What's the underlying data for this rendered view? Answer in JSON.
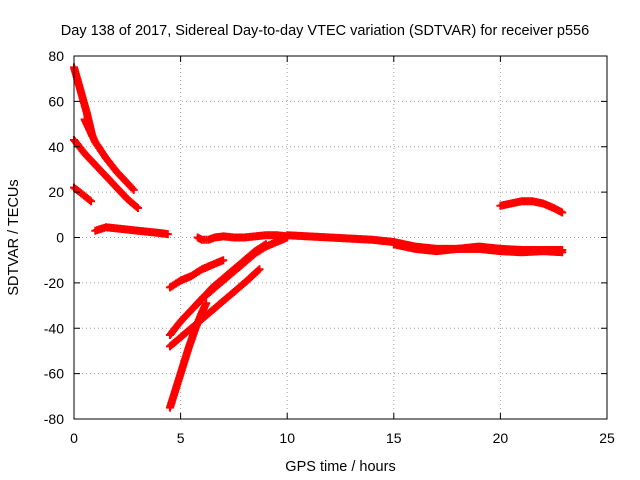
{
  "chart_data": {
    "type": "scatter",
    "title": "Day 138 of 2017, Sidereal Day-to-day VTEC variation (SDTVAR) for receiver p556",
    "xlabel": "GPS time / hours",
    "ylabel": "SDTVAR / TECUs",
    "xlim": [
      0,
      25
    ],
    "ylim": [
      -80,
      80
    ],
    "xticks": [
      "0",
      "5",
      "10",
      "15",
      "20",
      "25"
    ],
    "yticks": [
      "-80",
      "-60",
      "-40",
      "-20",
      "0",
      "20",
      "40",
      "60",
      "80"
    ],
    "grid": true,
    "marker": "plus",
    "color": "#ff0000",
    "series": [
      {
        "x": [
          0.0,
          0.3,
          0.6,
          0.85
        ],
        "y": [
          75,
          65,
          55,
          45
        ]
      },
      {
        "x": [
          0.5,
          1.0,
          1.5,
          2.0,
          2.5,
          2.8
        ],
        "y": [
          52,
          42,
          35,
          29,
          24,
          21
        ]
      },
      {
        "x": [
          0.0,
          0.5,
          1.0,
          1.5,
          2.0,
          2.5,
          3.0
        ],
        "y": [
          43,
          37,
          32,
          27,
          22,
          17,
          13
        ]
      },
      {
        "x": [
          0.0,
          0.4,
          0.8
        ],
        "y": [
          22,
          19,
          16
        ]
      },
      {
        "x": [
          1.0,
          1.5,
          2.0,
          2.5,
          3.0,
          3.5,
          4.0,
          4.4
        ],
        "y": [
          3,
          4.5,
          4,
          3.5,
          3,
          2.5,
          2,
          1.5
        ]
      },
      {
        "x": [
          4.5,
          5.0,
          5.5,
          6.0,
          6.5,
          7.0
        ],
        "y": [
          -22,
          -19,
          -17,
          -14,
          -12,
          -10
        ]
      },
      {
        "x": [
          4.5,
          5.0,
          5.5,
          6.0,
          6.5,
          7.0,
          7.5,
          8.0,
          8.5,
          9.0
        ],
        "y": [
          -43,
          -37,
          -32,
          -27,
          -22,
          -18,
          -14,
          -10,
          -6,
          -3
        ]
      },
      {
        "x": [
          4.5,
          5.0,
          5.5,
          6.0,
          6.5,
          7.0,
          7.5,
          8.0,
          8.7
        ],
        "y": [
          -48,
          -44,
          -40,
          -36,
          -32,
          -28,
          -24,
          -20,
          -14
        ]
      },
      {
        "x": [
          4.5,
          4.8,
          5.1,
          5.4,
          5.7,
          6.0,
          6.2
        ],
        "y": [
          -75,
          -66,
          -57,
          -48,
          -40,
          -33,
          -29
        ]
      },
      {
        "x": [
          5.6,
          6.0,
          6.5,
          7.0,
          7.5,
          8.0,
          8.5,
          9.0,
          9.5,
          10.0
        ],
        "y": [
          -31,
          -27,
          -23,
          -19,
          -15,
          -11,
          -7,
          -4,
          -2,
          0
        ]
      },
      {
        "x": [
          5.8,
          6.0,
          6.3,
          6.6,
          7.0,
          7.5,
          8.0,
          8.5,
          9.0,
          9.5,
          10.0
        ],
        "y": [
          0,
          -1,
          -1,
          0,
          0.5,
          0,
          0,
          0.5,
          1,
          1,
          0.5
        ]
      },
      {
        "x": [
          10,
          11,
          12,
          13,
          14,
          15,
          16,
          17,
          18,
          19,
          20,
          21,
          22,
          22.9
        ],
        "y": [
          1,
          0.5,
          0,
          -0.5,
          -1,
          -2,
          -4,
          -5,
          -5,
          -4,
          -5,
          -5.5,
          -5.5,
          -5.5
        ]
      },
      {
        "x": [
          15,
          16,
          17,
          18,
          19,
          20,
          21,
          22,
          22.9
        ],
        "y": [
          -3,
          -5,
          -6,
          -5,
          -5,
          -6,
          -6.5,
          -6,
          -6.5
        ]
      },
      {
        "x": [
          20.0,
          20.5,
          21.0,
          21.5,
          22.0,
          22.5,
          22.9
        ],
        "y": [
          14,
          15,
          16,
          16,
          15,
          13,
          11
        ]
      }
    ]
  }
}
